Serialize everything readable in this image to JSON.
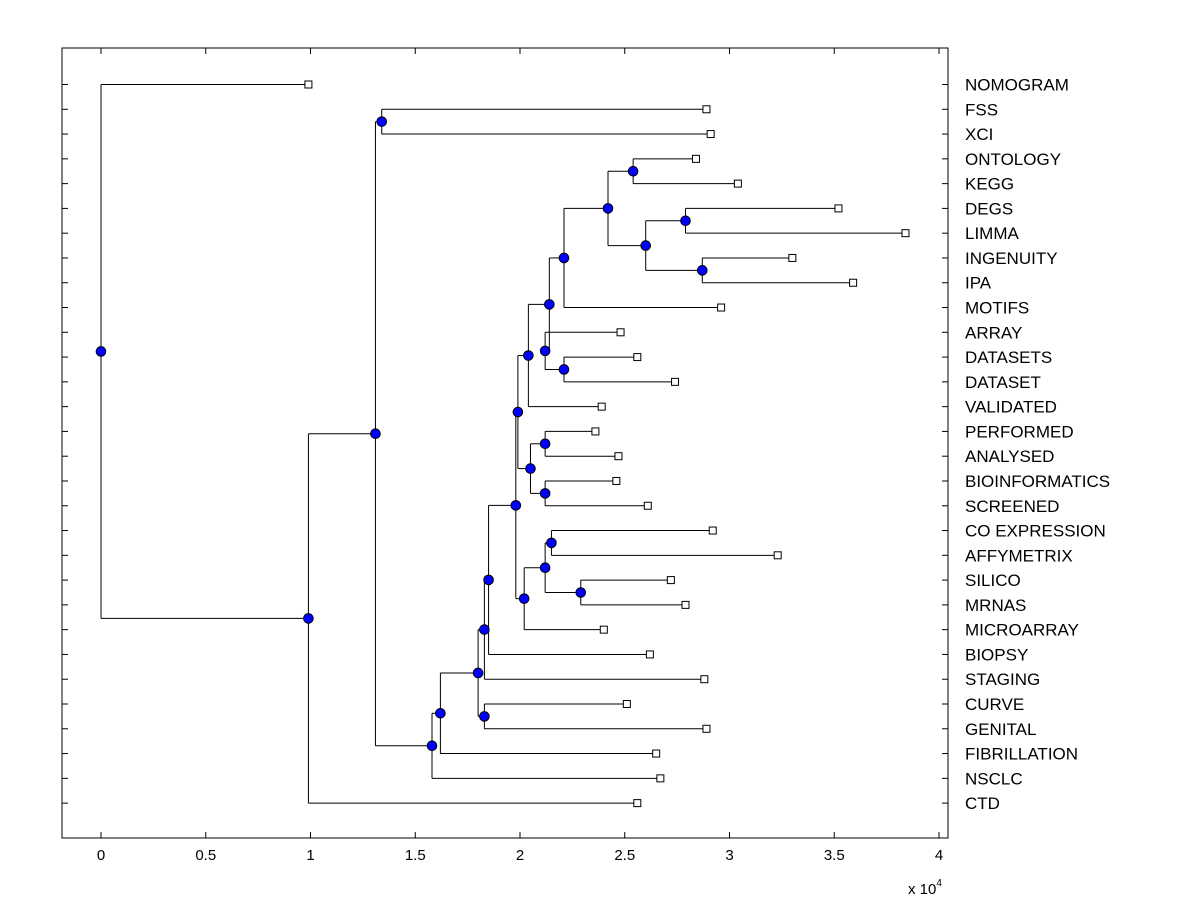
{
  "chart_data": {
    "type": "dendrogram",
    "title": "",
    "xlabel": "",
    "ylabel": "",
    "x_scale_label": "x 10",
    "x_scale_exponent": "4",
    "x_scale_factor": 10000,
    "xlim": [
      -0.2,
      4.04
    ],
    "xticks": [
      0,
      0.5,
      1,
      1.5,
      2,
      2.5,
      3,
      3.5,
      4
    ],
    "xtick_labels": [
      "0",
      "0.5",
      "1",
      "1.5",
      "2",
      "2.5",
      "3",
      "3.5",
      "4"
    ],
    "node_color": "#0000ff",
    "leaves": [
      {
        "label": "NOMOGRAM",
        "x": 0.99
      },
      {
        "label": "FSS",
        "x": 2.89
      },
      {
        "label": "XCI",
        "x": 2.91
      },
      {
        "label": "ONTOLOGY",
        "x": 2.84
      },
      {
        "label": "KEGG",
        "x": 3.04
      },
      {
        "label": "DEGS",
        "x": 3.52
      },
      {
        "label": "LIMMA",
        "x": 3.84
      },
      {
        "label": "INGENUITY",
        "x": 3.3
      },
      {
        "label": "IPA",
        "x": 3.59
      },
      {
        "label": "MOTIFS",
        "x": 2.96
      },
      {
        "label": "ARRAY",
        "x": 2.48
      },
      {
        "label": "DATASETS",
        "x": 2.56
      },
      {
        "label": "DATASET",
        "x": 2.74
      },
      {
        "label": "VALIDATED",
        "x": 2.39
      },
      {
        "label": "PERFORMED",
        "x": 2.36
      },
      {
        "label": "ANALYSED",
        "x": 2.47
      },
      {
        "label": "BIOINFORMATICS",
        "x": 2.46
      },
      {
        "label": "SCREENED",
        "x": 2.61
      },
      {
        "label": "CO EXPRESSION",
        "x": 2.92
      },
      {
        "label": "AFFYMETRIX",
        "x": 3.23
      },
      {
        "label": "SILICO",
        "x": 2.72
      },
      {
        "label": "MRNAS",
        "x": 2.79
      },
      {
        "label": "MICROARRAY",
        "x": 2.4
      },
      {
        "label": "BIOPSY",
        "x": 2.62
      },
      {
        "label": "STAGING",
        "x": 2.88
      },
      {
        "label": "CURVE",
        "x": 2.51
      },
      {
        "label": "GENITAL",
        "x": 2.89
      },
      {
        "label": "FIBRILLATION",
        "x": 2.65
      },
      {
        "label": "NSCLC",
        "x": 2.67
      },
      {
        "label": "CTD",
        "x": 2.56
      }
    ],
    "merges": [
      {
        "name": "n-ontology-kegg",
        "x": 2.54,
        "children": [
          "L3",
          "L4"
        ]
      },
      {
        "name": "n-degs-limma",
        "x": 2.79,
        "children": [
          "L5",
          "L6"
        ]
      },
      {
        "name": "n-ingenuity-ipa",
        "x": 2.87,
        "children": [
          "L7",
          "L8"
        ]
      },
      {
        "name": "n-degs-ipa",
        "x": 2.6,
        "children": [
          "n-degs-limma",
          "n-ingenuity-ipa"
        ]
      },
      {
        "name": "n-ontology-ipa",
        "x": 2.42,
        "children": [
          "n-ontology-kegg",
          "n-degs-ipa"
        ]
      },
      {
        "name": "n-ontology-motifs",
        "x": 2.21,
        "children": [
          "n-ontology-ipa",
          "L9"
        ]
      },
      {
        "name": "n-datasets-dataset",
        "x": 2.21,
        "children": [
          "L11",
          "L12"
        ]
      },
      {
        "name": "n-array-dataset",
        "x": 2.12,
        "children": [
          "L10",
          "n-datasets-dataset"
        ]
      },
      {
        "name": "n-ontology-dataset",
        "x": 2.14,
        "children": [
          "n-ontology-motifs",
          "n-array-dataset"
        ]
      },
      {
        "name": "n-ontology-validated",
        "x": 2.04,
        "children": [
          "n-ontology-dataset",
          "L13"
        ]
      },
      {
        "name": "n-performed-analysed",
        "x": 2.12,
        "children": [
          "L14",
          "L15"
        ]
      },
      {
        "name": "n-bioinf-screened",
        "x": 2.12,
        "children": [
          "L16",
          "L17"
        ]
      },
      {
        "name": "n-performed-screened",
        "x": 2.05,
        "children": [
          "n-performed-analysed",
          "n-bioinf-screened"
        ]
      },
      {
        "name": "n-ontology-screened",
        "x": 1.99,
        "children": [
          "n-ontology-validated",
          "n-performed-screened"
        ]
      },
      {
        "name": "n-coexp-affy",
        "x": 2.15,
        "children": [
          "L18",
          "L19"
        ]
      },
      {
        "name": "n-silico-mrnas",
        "x": 2.29,
        "children": [
          "L20",
          "L21"
        ]
      },
      {
        "name": "n-coexp-mrnas",
        "x": 2.12,
        "children": [
          "n-coexp-affy",
          "n-silico-mrnas"
        ]
      },
      {
        "name": "n-coexp-microarray",
        "x": 2.02,
        "children": [
          "n-coexp-mrnas",
          "L22"
        ]
      },
      {
        "name": "n-ontology-microarray",
        "x": 1.98,
        "children": [
          "n-ontology-screened",
          "n-coexp-microarray"
        ]
      },
      {
        "name": "n-ontology-biopsy",
        "x": 1.85,
        "children": [
          "n-ontology-microarray",
          "L23"
        ]
      },
      {
        "name": "n-ontology-staging",
        "x": 1.83,
        "children": [
          "n-ontology-biopsy",
          "L24"
        ]
      },
      {
        "name": "n-curve-genital",
        "x": 1.83,
        "children": [
          "L25",
          "L26"
        ]
      },
      {
        "name": "n-ontology-genital",
        "x": 1.8,
        "children": [
          "n-ontology-staging",
          "n-curve-genital"
        ]
      },
      {
        "name": "n-ontology-fibrillation",
        "x": 1.62,
        "children": [
          "n-ontology-genital",
          "L27"
        ]
      },
      {
        "name": "n-ontology-nsclc",
        "x": 1.58,
        "children": [
          "n-ontology-fibrillation",
          "L28"
        ]
      },
      {
        "name": "n-fss-xci",
        "x": 1.34,
        "children": [
          "L1",
          "L2"
        ]
      },
      {
        "name": "n-fss-nsclc",
        "x": 1.31,
        "children": [
          "n-fss-xci",
          "n-ontology-nsclc"
        ]
      },
      {
        "name": "n-fss-ctd",
        "x": 0.99,
        "children": [
          "n-fss-nsclc",
          "L29"
        ]
      },
      {
        "name": "n-root",
        "x": 0.0,
        "children": [
          "L0",
          "n-fss-ctd"
        ]
      }
    ]
  }
}
